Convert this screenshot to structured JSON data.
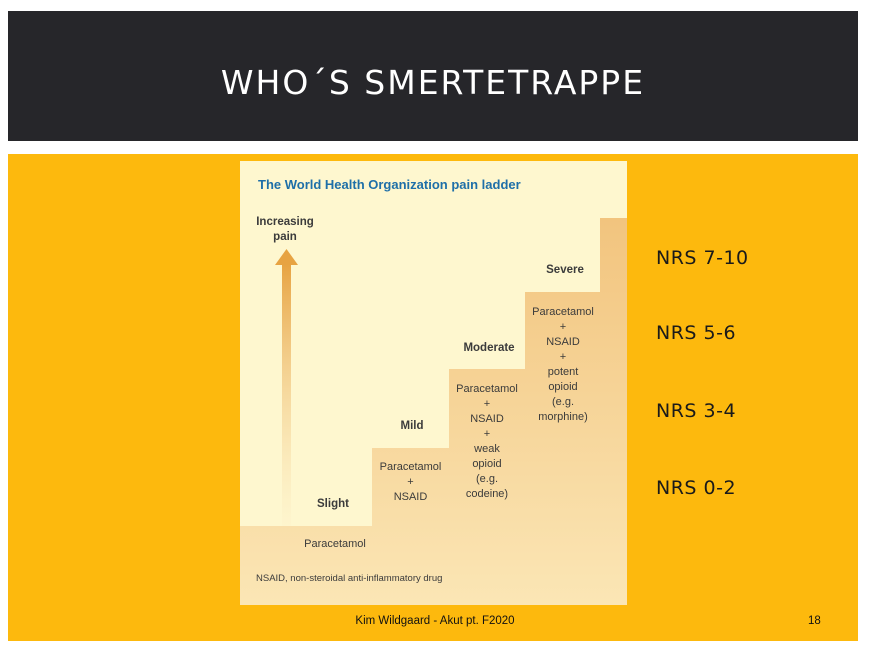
{
  "slide": {
    "title": "WHO´S SMERTETRAPPE",
    "footer": "Kim Wildgaard - Akut pt. F2020",
    "page_number": "18"
  },
  "ladder": {
    "title": "The World Health Organization pain ladder",
    "arrow_label": [
      "Increasing",
      "pain"
    ],
    "steps": [
      {
        "level": "Slight",
        "drugs": [
          "Paracetamol"
        ]
      },
      {
        "level": "Mild",
        "drugs": [
          "Paracetamol",
          "+",
          "NSAID"
        ]
      },
      {
        "level": "Moderate",
        "drugs": [
          "Paracetamol",
          "+",
          "NSAID",
          "+",
          "weak",
          "opioid",
          "(e.g.",
          "codeine)"
        ]
      },
      {
        "level": "Severe",
        "drugs": [
          "Paracetamol",
          "+",
          "NSAID",
          "+",
          "potent",
          "opioid",
          "(e.g.",
          "morphine)"
        ]
      }
    ],
    "footnote": "NSAID, non-steroidal anti-inflammatory drug"
  },
  "nrs": [
    "NRS 7-10",
    "NRS 5-6",
    "NRS 3-4",
    "NRS 0-2"
  ],
  "colors": {
    "title_bar": "#26262a",
    "background": "#fdb90d",
    "ladder_bg": "#fef7cf",
    "ladder_title": "#1e6fa8"
  }
}
